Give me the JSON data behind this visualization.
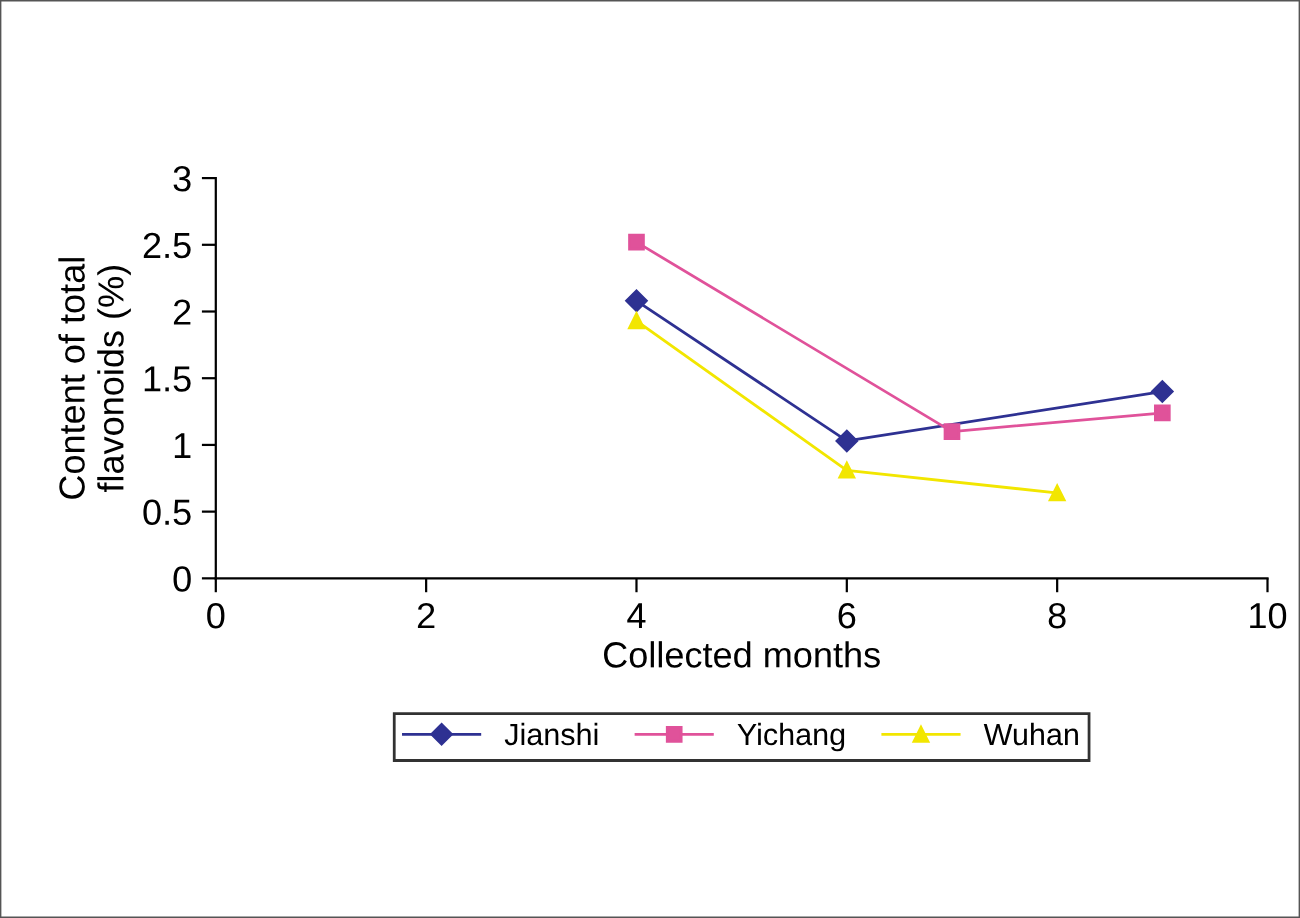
{
  "chart_data": {
    "type": "line",
    "xlabel": "Collected months",
    "ylabel": "Content of total\nflavonoids (%)",
    "xlim": [
      0,
      10
    ],
    "xticks": [
      0,
      2,
      4,
      6,
      8,
      10
    ],
    "ylim": [
      0,
      3
    ],
    "yticks": [
      0,
      0.5,
      1,
      1.5,
      2,
      2.5,
      3
    ],
    "grid": false,
    "legend": "bottom",
    "line_style": "solid",
    "series": [
      {
        "name": "Jianshi",
        "color": "#2e3192",
        "marker": "diamond",
        "x": [
          4,
          6,
          9
        ],
        "values": [
          2.08,
          1.03,
          1.4
        ]
      },
      {
        "name": "Yichang",
        "color": "#e0529a",
        "marker": "square",
        "x": [
          4,
          7,
          9
        ],
        "values": [
          2.52,
          1.1,
          1.24
        ]
      },
      {
        "name": "Wuhan",
        "color": "#f2e600",
        "marker": "triangle",
        "x": [
          4,
          6,
          8
        ],
        "values": [
          1.93,
          0.81,
          0.64
        ]
      }
    ]
  }
}
